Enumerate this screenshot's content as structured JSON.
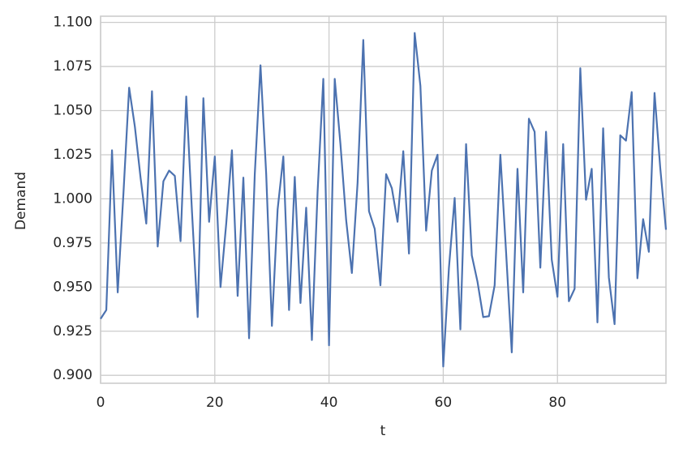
{
  "chart_data": {
    "type": "line",
    "xlabel": "t",
    "ylabel": "Demand",
    "x": [
      0,
      1,
      2,
      3,
      4,
      5,
      6,
      7,
      8,
      9,
      10,
      11,
      12,
      13,
      14,
      15,
      16,
      17,
      18,
      19,
      20,
      21,
      22,
      23,
      24,
      25,
      26,
      27,
      28,
      29,
      30,
      31,
      32,
      33,
      34,
      35,
      36,
      37,
      38,
      39,
      40,
      41,
      42,
      43,
      44,
      45,
      46,
      47,
      48,
      49,
      50,
      51,
      52,
      53,
      54,
      55,
      56,
      57,
      58,
      59,
      60,
      61,
      62,
      63,
      64,
      65,
      66,
      67,
      68,
      69,
      70,
      71,
      72,
      73,
      74,
      75,
      76,
      77,
      78,
      79,
      80,
      81,
      82,
      83,
      84,
      85,
      86,
      87,
      88,
      89,
      90,
      91,
      92,
      93,
      94,
      95,
      96,
      97,
      98,
      99
    ],
    "series": [
      {
        "color": "#4c72b0",
        "values": [
          0.932,
          0.937,
          1.0275,
          0.947,
          1.003,
          1.063,
          1.041,
          1.012,
          0.986,
          1.061,
          0.973,
          1.01,
          1.016,
          1.013,
          0.976,
          1.058,
          0.993,
          0.933,
          1.057,
          0.987,
          1.024,
          0.95,
          0.986,
          1.0275,
          0.945,
          1.012,
          0.921,
          1.014,
          1.0757,
          1.014,
          0.928,
          0.994,
          1.024,
          0.937,
          1.0124,
          0.941,
          0.995,
          0.92,
          1.004,
          1.068,
          0.917,
          1.068,
          1.031,
          0.988,
          0.958,
          1.009,
          1.09,
          0.993,
          0.983,
          0.951,
          1.014,
          1.006,
          0.987,
          1.027,
          0.969,
          1.094,
          1.064,
          0.982,
          1.016,
          1.025,
          0.905,
          0.961,
          1.0005,
          0.926,
          1.031,
          0.968,
          0.953,
          0.933,
          0.9335,
          0.951,
          1.025,
          0.97,
          0.913,
          1.017,
          0.947,
          1.0454,
          1.038,
          0.961,
          1.038,
          0.9655,
          0.9445,
          1.031,
          0.942,
          0.949,
          1.074,
          0.9995,
          1.017,
          0.93,
          1.04,
          0.9555,
          0.929,
          1.036,
          1.033,
          1.0605,
          0.955,
          0.9885,
          0.97,
          1.06,
          1.0175,
          0.9825
        ]
      }
    ],
    "xlim": [
      0,
      99
    ],
    "xticks": [
      0,
      20,
      40,
      60,
      80
    ],
    "ylim": [
      0.8955,
      1.1035
    ],
    "yticks": [
      {
        "value": 0.9,
        "label": "0.900"
      },
      {
        "value": 0.925,
        "label": "0.925"
      },
      {
        "value": 0.95,
        "label": "0.950"
      },
      {
        "value": 0.975,
        "label": "0.975"
      },
      {
        "value": 1.0,
        "label": "1.000"
      },
      {
        "value": 1.025,
        "label": "1.025"
      },
      {
        "value": 1.05,
        "label": "1.050"
      },
      {
        "value": 1.075,
        "label": "1.075"
      },
      {
        "value": 1.1,
        "label": "1.100"
      }
    ],
    "grid": true
  }
}
